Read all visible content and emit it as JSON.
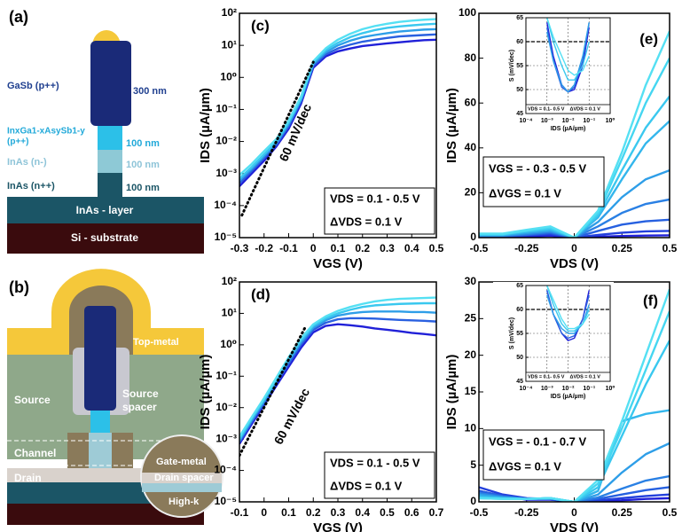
{
  "diagrams": {
    "a": {
      "panel_label": "(a)",
      "labels": [
        "GaSb (p++)",
        "300 nm",
        "InxGa1-xAsySb1-y",
        "(p++)",
        "100 nm",
        "InAs (n-)",
        "100 nm",
        "InAs (n++)",
        "100 nm",
        "InAs - layer",
        "Si - substrate"
      ]
    },
    "b": {
      "panel_label": "(b)",
      "labels": [
        "Top-metal",
        "Source",
        "Source",
        "spacer",
        "Channel",
        "Gate-metal",
        "Drain",
        "Drain spacer",
        "High-k"
      ]
    }
  },
  "chart_data": [
    {
      "type": "line",
      "panel_label": "(c)",
      "x_label": "VGS (V)",
      "y_label": "IDS (µA/µm)",
      "y_scale": "log",
      "xlim": [
        -0.3,
        0.5
      ],
      "xticks": [
        -0.3,
        -0.2,
        -0.1,
        0,
        0.1,
        0.2,
        0.3,
        0.4,
        0.5
      ],
      "ylim": [
        1e-05,
        100
      ],
      "yticks": [
        {
          "value": 1e-05,
          "label": "10⁻⁵"
        },
        {
          "value": 0.0001,
          "label": "10⁻⁴"
        },
        {
          "value": 0.001,
          "label": "10⁻³"
        },
        {
          "value": 0.01,
          "label": "10⁻²"
        },
        {
          "value": 0.1,
          "label": "10⁻¹"
        },
        {
          "value": 1,
          "label": "10⁰"
        },
        {
          "value": 10,
          "label": "10¹"
        },
        {
          "value": 100,
          "label": "10²"
        }
      ],
      "x": [
        -0.3,
        -0.25,
        -0.2,
        -0.15,
        -0.1,
        -0.05,
        0,
        0.05,
        0.1,
        0.15,
        0.2,
        0.25,
        0.3,
        0.35,
        0.4,
        0.45,
        0.5
      ],
      "series": [
        {
          "color": "#2020d8",
          "values": [
            0.0004,
            0.001,
            0.0025,
            0.007,
            0.025,
            0.15,
            2,
            4.5,
            6.5,
            8,
            9.5,
            10.5,
            11.5,
            12.5,
            13.5,
            14.5,
            15
          ]
        },
        {
          "color": "#2a60e0",
          "values": [
            0.0005,
            0.0012,
            0.003,
            0.008,
            0.03,
            0.18,
            2.3,
            5.2,
            8,
            10.5,
            13,
            15,
            17,
            19,
            20,
            21,
            22
          ]
        },
        {
          "color": "#2e9ee8",
          "values": [
            0.0006,
            0.0014,
            0.0035,
            0.009,
            0.035,
            0.2,
            2.6,
            6,
            10,
            14,
            18,
            21,
            24,
            27,
            29,
            31,
            32
          ]
        },
        {
          "color": "#3ac8ef",
          "values": [
            0.0007,
            0.0016,
            0.004,
            0.01,
            0.04,
            0.22,
            2.9,
            7,
            12,
            18,
            24,
            30,
            35,
            39,
            42,
            45,
            47
          ]
        },
        {
          "color": "#55e0f3",
          "values": [
            0.0009,
            0.002,
            0.005,
            0.012,
            0.045,
            0.25,
            3.2,
            8,
            15,
            23,
            32,
            40,
            47,
            54,
            59,
            63,
            66
          ]
        }
      ],
      "reference_line": {
        "x": [
          -0.29,
          0
        ],
        "values": [
          5e-05,
          3
        ]
      },
      "annotation": "60 mV/dec",
      "legend_text": [
        "VDS = 0.1 - 0.5 V",
        "ΔVDS = 0.1 V"
      ]
    },
    {
      "type": "line",
      "panel_label": "(e)",
      "x_label": "VDS (V)",
      "y_label": "IDS (µA/µm)",
      "xlim": [
        -0.5,
        0.5
      ],
      "xticks": [
        -0.5,
        -0.25,
        0,
        0.25,
        0.5
      ],
      "ylim": [
        0,
        100
      ],
      "yticks": [
        0,
        20,
        40,
        60,
        80,
        100
      ],
      "x": [
        -0.5,
        -0.375,
        -0.25,
        -0.125,
        0,
        0.125,
        0.25,
        0.375,
        0.5
      ],
      "series": [
        {
          "color": "#2020d8",
          "values": [
            0.3,
            0.3,
            0.5,
            0.8,
            0,
            0.4,
            0.7,
            0.9,
            1
          ]
        },
        {
          "color": "#2340dc",
          "values": [
            0.5,
            0.5,
            1,
            1.5,
            0,
            1.2,
            2.2,
            2.8,
            3
          ]
        },
        {
          "color": "#2660e0",
          "values": [
            0.6,
            0.6,
            1.2,
            2,
            0,
            3,
            5.8,
            7.3,
            8
          ]
        },
        {
          "color": "#2a80e4",
          "values": [
            0.8,
            0.8,
            1.5,
            2.5,
            0,
            5,
            11,
            15,
            17
          ]
        },
        {
          "color": "#2e9ee8",
          "values": [
            1,
            1,
            2,
            3,
            0,
            7,
            18,
            26,
            30
          ]
        },
        {
          "color": "#33b6ec",
          "values": [
            1.2,
            1.2,
            2.5,
            3.5,
            0,
            9,
            26,
            42,
            52
          ]
        },
        {
          "color": "#3ac8ef",
          "values": [
            1.5,
            1.5,
            3,
            4,
            0,
            10,
            30,
            49,
            63
          ]
        },
        {
          "color": "#45d6f1",
          "values": [
            1.5,
            1.5,
            3,
            4.5,
            0,
            11,
            35,
            60,
            80
          ]
        },
        {
          "color": "#55e0f3",
          "values": [
            1.8,
            1.8,
            3.5,
            5,
            0,
            12,
            38,
            68,
            92
          ]
        }
      ],
      "legend_text": [
        "VGS = - 0.3 - 0.5 V",
        "ΔVGS = 0.1 V"
      ]
    },
    {
      "type": "line",
      "inset": true,
      "x_label": "IDS (µA/µm)",
      "y_label": "S (mV/dec)",
      "x_scale": "log",
      "grid": true,
      "reference_y": 60,
      "xlim": [
        0.0001,
        1
      ],
      "xticks": [
        {
          "value": 0.0001,
          "label": "10⁻⁴"
        },
        {
          "value": 0.001,
          "label": "10⁻³"
        },
        {
          "value": 0.01,
          "label": "10⁻²"
        },
        {
          "value": 0.1,
          "label": "10⁻¹"
        },
        {
          "value": 1,
          "label": "10⁰"
        }
      ],
      "ylim": [
        45,
        65
      ],
      "yticks": [
        45,
        50,
        55,
        60,
        65
      ],
      "x": [
        0.001,
        0.002,
        0.005,
        0.01,
        0.02,
        0.05,
        0.1
      ],
      "series": [
        {
          "color": "#2020d8",
          "values": [
            64,
            57,
            51,
            49.5,
            50,
            55,
            63
          ]
        },
        {
          "color": "#2a60e0",
          "values": [
            63,
            56,
            50.5,
            49.5,
            50.5,
            56,
            64
          ]
        },
        {
          "color": "#2e9ee8",
          "values": [
            62,
            56,
            51,
            49.5,
            51,
            57,
            64
          ]
        },
        {
          "color": "#3ac8ef",
          "values": [
            65,
            60,
            55,
            52,
            52,
            55,
            60
          ]
        },
        {
          "color": "#55e0f3",
          "values": [
            65,
            61,
            57,
            54,
            53,
            54,
            57
          ]
        }
      ],
      "legend_text": [
        "VDS = 0.1- 0.5 V",
        "ΔVDS = 0.1 V"
      ]
    },
    {
      "type": "line",
      "panel_label": "(d)",
      "x_label": "VGS (V)",
      "y_label": "IDS (µA/µm)",
      "y_scale": "log",
      "xlim": [
        -0.1,
        0.7
      ],
      "xticks": [
        -0.1,
        0,
        0.1,
        0.2,
        0.3,
        0.4,
        0.5,
        0.6,
        0.7
      ],
      "ylim": [
        1e-05,
        100
      ],
      "yticks": [
        {
          "value": 1e-05,
          "label": "10⁻⁵"
        },
        {
          "value": 0.0001,
          "label": "10⁻⁴"
        },
        {
          "value": 0.001,
          "label": "10⁻³"
        },
        {
          "value": 0.01,
          "label": "10⁻²"
        },
        {
          "value": 0.1,
          "label": "10⁻¹"
        },
        {
          "value": 1,
          "label": "10⁰"
        },
        {
          "value": 10,
          "label": "10¹"
        },
        {
          "value": 100,
          "label": "10²"
        }
      ],
      "x": [
        -0.1,
        -0.05,
        0,
        0.05,
        0.1,
        0.15,
        0.2,
        0.25,
        0.3,
        0.35,
        0.4,
        0.45,
        0.5,
        0.55,
        0.6,
        0.65,
        0.7
      ],
      "series": [
        {
          "color": "#2020d8",
          "values": [
            0.0007,
            0.003,
            0.012,
            0.05,
            0.2,
            0.8,
            2.5,
            4,
            4.5,
            4.2,
            3.8,
            3.3,
            3,
            2.7,
            2.4,
            2.2,
            2
          ]
        },
        {
          "color": "#2a60e0",
          "values": [
            0.0008,
            0.0035,
            0.014,
            0.06,
            0.25,
            1,
            3,
            5,
            6.5,
            7,
            7,
            6.8,
            6.5,
            6.2,
            6,
            5.8,
            5.5
          ]
        },
        {
          "color": "#2e9ee8",
          "values": [
            0.0009,
            0.004,
            0.016,
            0.07,
            0.3,
            1.2,
            3.5,
            6,
            8.5,
            10,
            11,
            11.5,
            11.5,
            11.5,
            11,
            11,
            10.5
          ]
        },
        {
          "color": "#3ac8ef",
          "values": [
            0.001,
            0.0045,
            0.018,
            0.08,
            0.35,
            1.4,
            4,
            7,
            10,
            13,
            16,
            18,
            19,
            20,
            20.5,
            21,
            21
          ]
        },
        {
          "color": "#55e0f3",
          "values": [
            0.0012,
            0.005,
            0.02,
            0.09,
            0.4,
            1.6,
            4.5,
            8,
            12,
            16,
            20,
            24,
            27,
            29,
            30,
            31,
            32
          ]
        }
      ],
      "reference_line": {
        "x": [
          -0.1,
          0.17
        ],
        "values": [
          0.0003,
          4
        ]
      },
      "annotation": "60 mV/dec",
      "legend_text": [
        "VDS = 0.1 - 0.5 V",
        "ΔVDS = 0.1 V"
      ]
    },
    {
      "type": "line",
      "panel_label": "(f)",
      "x_label": "VDS (V)",
      "y_label": "IDS (µA/µm)",
      "xlim": [
        -0.5,
        0.5
      ],
      "xticks": [
        -0.5,
        -0.25,
        0,
        0.25,
        0.5
      ],
      "ylim": [
        0,
        30
      ],
      "yticks": [
        0,
        5,
        10,
        15,
        20,
        25,
        30
      ],
      "x": [
        -0.5,
        -0.375,
        -0.25,
        -0.125,
        0,
        0.125,
        0.25,
        0.375,
        0.5
      ],
      "series": [
        {
          "color": "#2020d8",
          "values": [
            1.5,
            0.8,
            0.3,
            0.3,
            0,
            0.1,
            0.2,
            0.4,
            0.5
          ]
        },
        {
          "color": "#2340dc",
          "values": [
            2,
            1,
            0.5,
            0.4,
            0,
            0.2,
            0.5,
            0.8,
            1
          ]
        },
        {
          "color": "#2660e0",
          "values": [
            1.5,
            0.8,
            0.4,
            0.4,
            0,
            0.4,
            1,
            1.6,
            2
          ]
        },
        {
          "color": "#2a80e4",
          "values": [
            1.2,
            0.7,
            0.4,
            0.4,
            0,
            0.6,
            1.8,
            2.9,
            3.5
          ]
        },
        {
          "color": "#2e9ee8",
          "values": [
            1,
            0.6,
            0.4,
            0.5,
            0,
            1,
            4,
            6.5,
            8
          ]
        },
        {
          "color": "#33b6ec",
          "values": [
            0.8,
            0.5,
            0.4,
            0.5,
            0,
            1.5,
            11,
            12,
            12.5
          ]
        },
        {
          "color": "#3ac8ef",
          "values": [
            0.6,
            0.5,
            0.4,
            0.5,
            0,
            2,
            9,
            16,
            22
          ]
        },
        {
          "color": "#45d6f1",
          "values": [
            0.5,
            0.4,
            0.4,
            0.5,
            0,
            2.5,
            10,
            18,
            26
          ]
        },
        {
          "color": "#55e0f3",
          "values": [
            0.5,
            0.4,
            0.4,
            0.5,
            0,
            3,
            11,
            20,
            29
          ]
        }
      ],
      "legend_text": [
        "VGS = - 0.1 - 0.7 V",
        "ΔVGS = 0.1 V"
      ]
    },
    {
      "type": "line",
      "inset": true,
      "x_label": "IDS (µA/µm)",
      "y_label": "S (mV/dec)",
      "x_scale": "log",
      "grid": true,
      "reference_y": 60,
      "xlim": [
        0.0001,
        1
      ],
      "xticks": [
        {
          "value": 0.0001,
          "label": "10⁻⁴"
        },
        {
          "value": 0.001,
          "label": "10⁻³"
        },
        {
          "value": 0.01,
          "label": "10⁻²"
        },
        {
          "value": 0.1,
          "label": "10⁻¹"
        },
        {
          "value": 1,
          "label": "10⁰"
        }
      ],
      "ylim": [
        45,
        65
      ],
      "yticks": [
        45,
        50,
        55,
        60,
        65
      ],
      "x": [
        0.001,
        0.002,
        0.005,
        0.01,
        0.02,
        0.05,
        0.1
      ],
      "series": [
        {
          "color": "#2020d8",
          "values": [
            64,
            59,
            55,
            53.5,
            54,
            58,
            64
          ]
        },
        {
          "color": "#2a60e0",
          "values": [
            64,
            59,
            55,
            54,
            54.5,
            58,
            63
          ]
        },
        {
          "color": "#2e9ee8",
          "values": [
            63,
            59,
            56,
            55,
            55,
            57,
            61
          ]
        },
        {
          "color": "#3ac8ef",
          "values": [
            65,
            61,
            57,
            55.5,
            55.5,
            57,
            60
          ]
        },
        {
          "color": "#55e0f3",
          "values": [
            65,
            62,
            58,
            56,
            56,
            57,
            59
          ]
        }
      ],
      "legend_text": [
        "VDS = 0.1- 0.5 V",
        "ΔVDS = 0.1 V"
      ]
    }
  ]
}
